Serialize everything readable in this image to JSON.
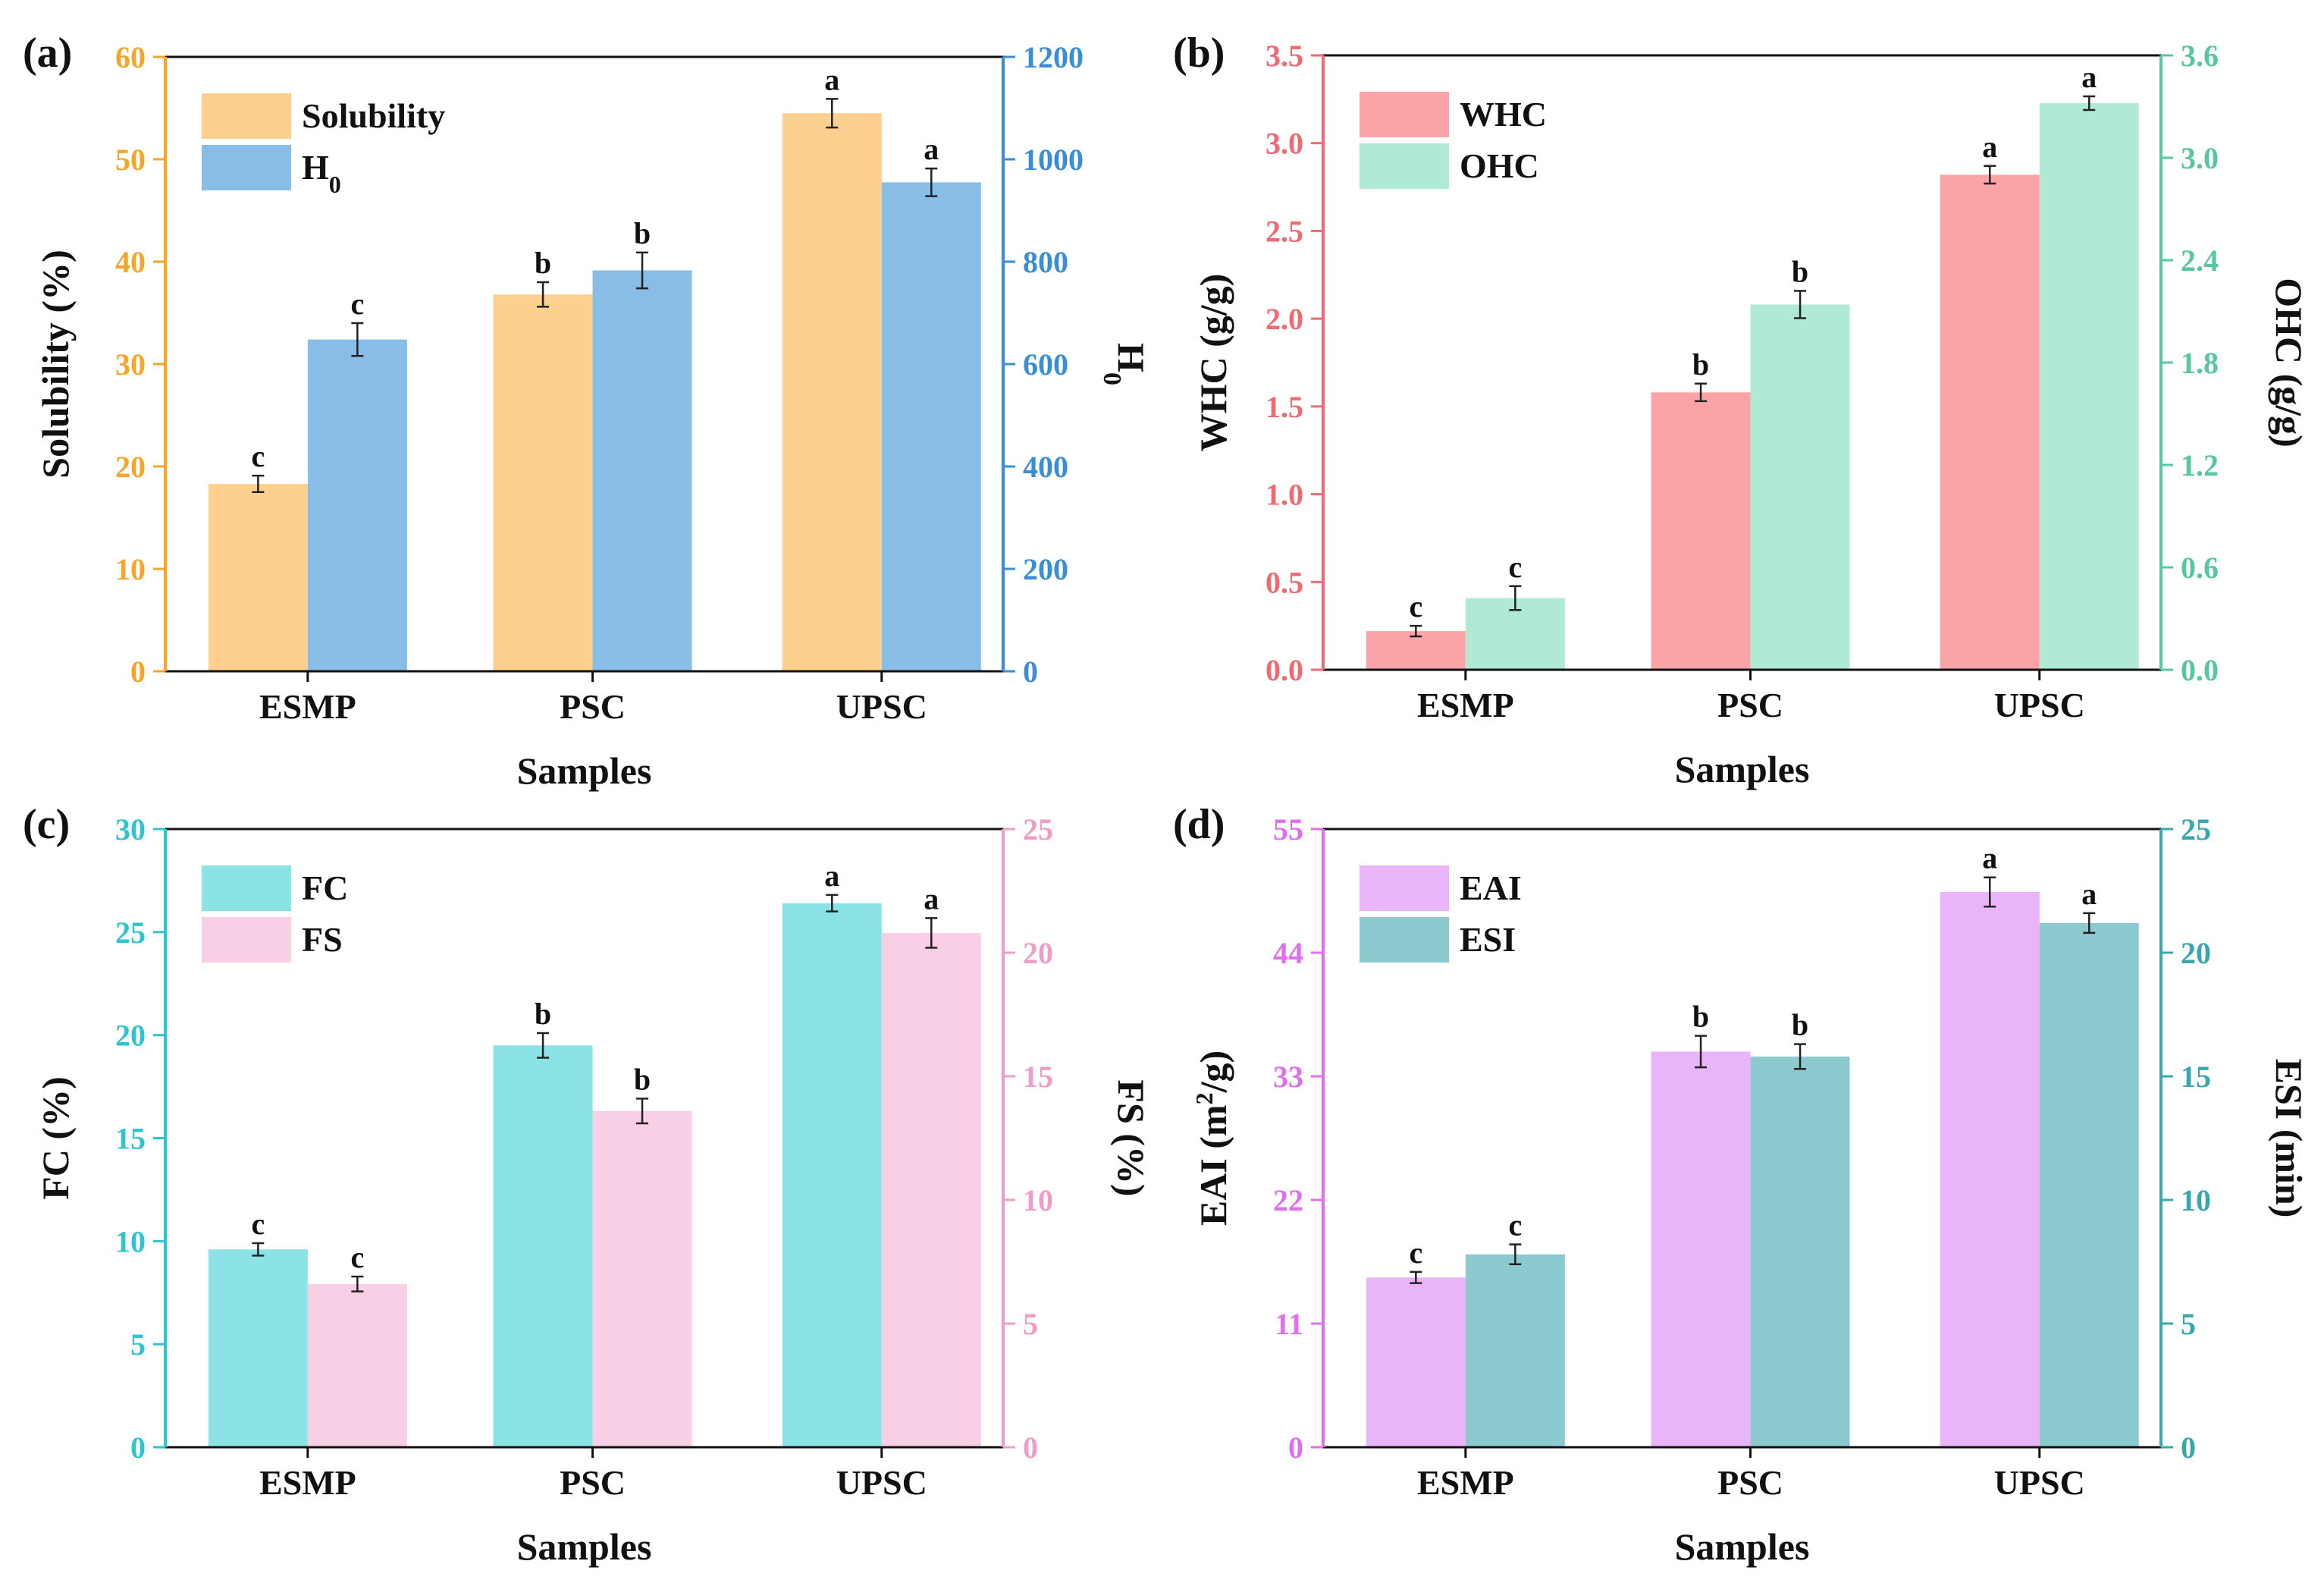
{
  "chart_data": [
    {
      "type": "bar",
      "panel_label": "(a)",
      "categories": [
        "ESMP",
        "PSC",
        "UPSC"
      ],
      "xlabel": "Samples",
      "ylabel_left": "Solubility (%)",
      "ylabel_right_main": "H",
      "ylabel_right_sub": "0",
      "ylim_left": [
        0,
        60
      ],
      "yticks_left": [
        "0",
        "10",
        "20",
        "30",
        "40",
        "50",
        "60"
      ],
      "ylim_right": [
        0,
        1200
      ],
      "yticks_right": [
        "0",
        "200",
        "400",
        "600",
        "800",
        "1000",
        "1200"
      ],
      "left_color": "#f4a62a",
      "right_color": "#3a8ed6",
      "series": [
        {
          "name": "Solubility",
          "axis": "left",
          "color": "#fdd08f",
          "values": [
            18.3,
            36.8,
            54.5
          ],
          "errors": [
            0.8,
            1.2,
            1.4
          ],
          "letters": [
            "c",
            "b",
            "a"
          ]
        },
        {
          "name": "H0",
          "legend_main": "H",
          "legend_sub": "0",
          "axis": "right",
          "color": "#88bde7",
          "values": [
            648,
            783,
            955
          ],
          "errors": [
            32,
            35,
            27
          ],
          "letters": [
            "c",
            "b",
            "a"
          ]
        }
      ]
    },
    {
      "type": "bar",
      "panel_label": "(b)",
      "categories": [
        "ESMP",
        "PSC",
        "UPSC"
      ],
      "xlabel": "Samples",
      "ylabel_left": "WHC (g/g)",
      "ylabel_right_main": "OHC (g/g)",
      "ylabel_right_sub": "",
      "ylim_left": [
        0,
        3.5
      ],
      "yticks_left": [
        "0.0",
        "0.5",
        "1.0",
        "1.5",
        "2.0",
        "2.5",
        "3.0",
        "3.5"
      ],
      "ylim_right": [
        0,
        3.6
      ],
      "yticks_right": [
        "0.0",
        "0.6",
        "1.2",
        "1.8",
        "2.4",
        "3.0",
        "3.6"
      ],
      "left_color": "#ef6a73",
      "right_color": "#58c7a0",
      "series": [
        {
          "name": "WHC",
          "axis": "left",
          "color": "#fba4a8",
          "values": [
            0.22,
            1.58,
            2.82
          ],
          "errors": [
            0.03,
            0.05,
            0.05
          ],
          "letters": [
            "c",
            "b",
            "a"
          ]
        },
        {
          "name": "OHC",
          "axis": "right",
          "color": "#b0ead4",
          "values": [
            0.42,
            2.14,
            3.32
          ],
          "errors": [
            0.07,
            0.08,
            0.04
          ],
          "letters": [
            "c",
            "b",
            "a"
          ]
        }
      ]
    },
    {
      "type": "bar",
      "panel_label": "(c)",
      "categories": [
        "ESMP",
        "PSC",
        "UPSC"
      ],
      "xlabel": "Samples",
      "ylabel_left": "FC (%)",
      "ylabel_right_main": "FS (%)",
      "ylabel_right_sub": "",
      "ylim_left": [
        0,
        30
      ],
      "yticks_left": [
        "0",
        "5",
        "10",
        "15",
        "20",
        "25",
        "30"
      ],
      "ylim_right": [
        0,
        25
      ],
      "yticks_right": [
        "0",
        "5",
        "10",
        "15",
        "20",
        "25"
      ],
      "left_color": "#2fc4d0",
      "right_color": "#ee9cc8",
      "series": [
        {
          "name": "FC",
          "axis": "left",
          "color": "#8be3e5",
          "values": [
            9.6,
            19.5,
            26.4
          ],
          "errors": [
            0.3,
            0.6,
            0.4
          ],
          "letters": [
            "c",
            "b",
            "a"
          ]
        },
        {
          "name": "FS",
          "axis": "right",
          "color": "#f8cfe4",
          "values": [
            6.6,
            13.6,
            20.8
          ],
          "errors": [
            0.3,
            0.5,
            0.6
          ],
          "letters": [
            "c",
            "b",
            "a"
          ]
        }
      ]
    },
    {
      "type": "bar",
      "panel_label": "(d)",
      "categories": [
        "ESMP",
        "PSC",
        "UPSC"
      ],
      "xlabel": "Samples",
      "ylabel_left_main": "EAI (m",
      "ylabel_left_sup": "2",
      "ylabel_left_tail": "/g)",
      "ylabel_right_main": "ESI (min)",
      "ylabel_right_sub": "",
      "ylim_left": [
        0,
        55
      ],
      "yticks_left": [
        "0",
        "11",
        "22",
        "33",
        "44",
        "55"
      ],
      "ylim_right": [
        0,
        25
      ],
      "yticks_right": [
        "0",
        "5",
        "10",
        "15",
        "20",
        "25"
      ],
      "left_color": "#e06ef0",
      "right_color": "#3aa6ad",
      "series": [
        {
          "name": "EAI",
          "axis": "left",
          "color": "#e9b4f8",
          "values": [
            15.1,
            35.2,
            49.4
          ],
          "errors": [
            0.5,
            1.4,
            1.3
          ],
          "letters": [
            "c",
            "b",
            "a"
          ]
        },
        {
          "name": "ESI",
          "axis": "right",
          "color": "#8dcad0",
          "values": [
            7.8,
            15.8,
            21.2
          ],
          "errors": [
            0.4,
            0.5,
            0.4
          ],
          "letters": [
            "c",
            "b",
            "a"
          ]
        }
      ]
    }
  ]
}
